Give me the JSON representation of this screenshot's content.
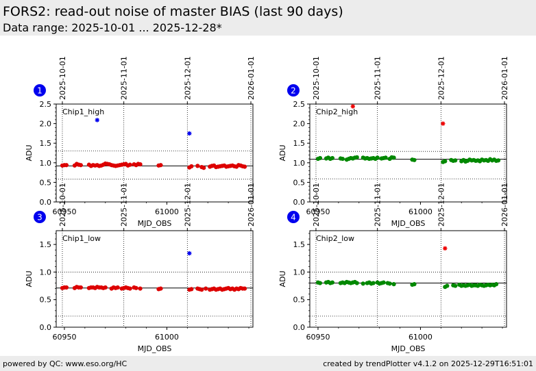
{
  "header": {
    "title": "FORS2: read-out noise of master BIAS (last 90 days)",
    "subtitle": "Data range: 2025-10-01 ... 2025-12-28*"
  },
  "footer": {
    "left": "powered by QC: www.eso.org/HC",
    "right": "created by trendPlotter v4.1.2 on 2025-12-29T16:51:01"
  },
  "colors": {
    "chip1_points": "#dd0000",
    "chip2_points": "#008800",
    "chip1_outlier": "#0000ee",
    "chip2_outlier": "#ee0000",
    "badge": "#0000ee"
  },
  "chart_data": [
    {
      "type": "scatter",
      "badge": "1",
      "label": "Chip1_high",
      "xlabel": "MJD_OBS",
      "ylabel": "ADU",
      "xlim": [
        60946,
        61042
      ],
      "ylim": [
        0,
        2.5
      ],
      "yticks": [
        0.0,
        0.5,
        1.0,
        1.5,
        2.0,
        2.5
      ],
      "xticks": [
        60950,
        61000
      ],
      "date_ticks": [
        {
          "mjd": 60949,
          "label": "2025-10-01"
        },
        {
          "mjd": 60979,
          "label": "2025-11-01"
        },
        {
          "mjd": 61010,
          "label": "2025-12-01"
        },
        {
          "mjd": 61041,
          "label": "2026-01-01"
        }
      ],
      "reference": 0.92,
      "thresholds": [
        0.58,
        1.3
      ],
      "point_color": "#dd0000",
      "x": [
        60949,
        60950,
        60951,
        60955,
        60956,
        60957,
        60958,
        60962,
        60963,
        60964,
        60965,
        60966,
        60967,
        60968,
        60969,
        60970,
        60971,
        60972,
        60973,
        60974,
        60975,
        60976,
        60977,
        60978,
        60979,
        60980,
        60981,
        60982,
        60984,
        60985,
        60986,
        60987,
        60996,
        60997,
        61011,
        61012,
        61015,
        61017,
        61018,
        61021,
        61022,
        61023,
        61024,
        61025,
        61026,
        61027,
        61028,
        61029,
        61030,
        61031,
        61032,
        61033,
        61034,
        61035,
        61036,
        61037,
        61038
      ],
      "y": [
        0.93,
        0.94,
        0.94,
        0.93,
        0.97,
        0.95,
        0.94,
        0.95,
        0.92,
        0.94,
        0.93,
        0.94,
        0.92,
        0.93,
        0.95,
        0.98,
        0.97,
        0.96,
        0.94,
        0.93,
        0.92,
        0.93,
        0.94,
        0.95,
        0.96,
        0.97,
        0.93,
        0.95,
        0.96,
        0.94,
        0.97,
        0.96,
        0.93,
        0.94,
        0.88,
        0.91,
        0.92,
        0.89,
        0.87,
        0.9,
        0.92,
        0.93,
        0.89,
        0.9,
        0.91,
        0.92,
        0.93,
        0.9,
        0.91,
        0.92,
        0.93,
        0.91,
        0.9,
        0.94,
        0.93,
        0.91,
        0.9
      ],
      "outliers": [
        {
          "x": 60966,
          "y": 2.09
        },
        {
          "x": 61011,
          "y": 1.75
        }
      ],
      "outlier_color": "#0000ee"
    },
    {
      "type": "scatter",
      "badge": "2",
      "label": "Chip2_high",
      "xlabel": "MJD_OBS",
      "ylabel": "ADU",
      "xlim": [
        60946,
        61042
      ],
      "ylim": [
        0,
        2.5
      ],
      "yticks": [
        0.0,
        0.5,
        1.0,
        1.5,
        2.0,
        2.5
      ],
      "xticks": [
        60950,
        61000
      ],
      "date_ticks": [
        {
          "mjd": 60949,
          "label": "2025-10-01"
        },
        {
          "mjd": 60979,
          "label": "2025-11-01"
        },
        {
          "mjd": 61010,
          "label": "2025-12-01"
        },
        {
          "mjd": 61041,
          "label": "2026-01-01"
        }
      ],
      "reference": 1.09,
      "thresholds": [
        0.59,
        1.29
      ],
      "point_color": "#008800",
      "x": [
        60950,
        60951,
        60954,
        60955,
        60956,
        60957,
        60961,
        60962,
        60964,
        60965,
        60966,
        60967,
        60968,
        60969,
        60972,
        60973,
        60974,
        60975,
        60976,
        60977,
        60978,
        60979,
        60981,
        60982,
        60983,
        60985,
        60986,
        60987,
        60996,
        60997,
        61011,
        61012,
        61015,
        61016,
        61017,
        61020,
        61021,
        61022,
        61023,
        61024,
        61025,
        61026,
        61027,
        61028,
        61029,
        61030,
        61031,
        61032,
        61033,
        61034,
        61035,
        61036,
        61037,
        61038
      ],
      "y": [
        1.1,
        1.12,
        1.11,
        1.13,
        1.1,
        1.12,
        1.11,
        1.1,
        1.08,
        1.1,
        1.12,
        1.11,
        1.13,
        1.14,
        1.13,
        1.11,
        1.12,
        1.1,
        1.11,
        1.12,
        1.1,
        1.13,
        1.11,
        1.12,
        1.13,
        1.1,
        1.14,
        1.13,
        1.08,
        1.07,
        1.02,
        1.04,
        1.07,
        1.05,
        1.06,
        1.04,
        1.07,
        1.03,
        1.05,
        1.08,
        1.06,
        1.07,
        1.05,
        1.06,
        1.04,
        1.08,
        1.06,
        1.07,
        1.05,
        1.09,
        1.06,
        1.08,
        1.05,
        1.06
      ],
      "outliers": [
        {
          "x": 60967,
          "y": 2.44
        },
        {
          "x": 61011,
          "y": 2.0
        }
      ],
      "outlier_color": "#ee0000"
    },
    {
      "type": "scatter",
      "badge": "3",
      "label": "Chip1_low",
      "xlabel": "MJD_OBS",
      "ylabel": "ADU",
      "xlim": [
        60946,
        61042
      ],
      "ylim": [
        0,
        1.75
      ],
      "yticks": [
        0.0,
        0.5,
        1.0,
        1.5
      ],
      "xticks": [
        60950,
        61000
      ],
      "date_ticks": [
        {
          "mjd": 60949,
          "label": "2025-10-01"
        },
        {
          "mjd": 60979,
          "label": "2025-11-01"
        },
        {
          "mjd": 61010,
          "label": "2025-12-01"
        },
        {
          "mjd": 61041,
          "label": "2026-01-01"
        }
      ],
      "reference": 0.71,
      "thresholds": [
        0.2,
        1.0
      ],
      "point_color": "#dd0000",
      "x": [
        60949,
        60950,
        60951,
        60955,
        60956,
        60957,
        60958,
        60962,
        60963,
        60964,
        60965,
        60966,
        60967,
        60968,
        60969,
        60970,
        60973,
        60974,
        60975,
        60976,
        60978,
        60979,
        60980,
        60981,
        60982,
        60984,
        60985,
        60987,
        60996,
        60997,
        61011,
        61012,
        61015,
        61016,
        61017,
        61019,
        61021,
        61022,
        61023,
        61024,
        61025,
        61026,
        61027,
        61028,
        61029,
        61030,
        61031,
        61032,
        61033,
        61034,
        61035,
        61036,
        61037,
        61038
      ],
      "y": [
        0.71,
        0.72,
        0.72,
        0.71,
        0.73,
        0.72,
        0.72,
        0.71,
        0.72,
        0.72,
        0.71,
        0.73,
        0.72,
        0.72,
        0.71,
        0.72,
        0.7,
        0.72,
        0.71,
        0.72,
        0.7,
        0.71,
        0.72,
        0.71,
        0.7,
        0.72,
        0.71,
        0.7,
        0.69,
        0.7,
        0.68,
        0.69,
        0.7,
        0.69,
        0.68,
        0.7,
        0.68,
        0.69,
        0.7,
        0.68,
        0.69,
        0.7,
        0.68,
        0.69,
        0.7,
        0.71,
        0.69,
        0.7,
        0.68,
        0.7,
        0.69,
        0.71,
        0.7,
        0.7
      ],
      "outliers": [
        {
          "x": 61011,
          "y": 1.34
        }
      ],
      "outlier_color": "#0000ee"
    },
    {
      "type": "scatter",
      "badge": "4",
      "label": "Chip2_low",
      "xlabel": "MJD_OBS",
      "ylabel": "ADU",
      "xlim": [
        60946,
        61042
      ],
      "ylim": [
        0,
        1.75
      ],
      "yticks": [
        0.0,
        0.5,
        1.0,
        1.5
      ],
      "xticks": [
        60950,
        61000
      ],
      "date_ticks": [
        {
          "mjd": 60949,
          "label": "2025-10-01"
        },
        {
          "mjd": 60979,
          "label": "2025-11-01"
        },
        {
          "mjd": 61010,
          "label": "2025-12-01"
        },
        {
          "mjd": 61041,
          "label": "2026-01-01"
        }
      ],
      "reference": 0.8,
      "thresholds": [
        0.2,
        1.0
      ],
      "point_color": "#008800",
      "x": [
        60950,
        60951,
        60954,
        60955,
        60956,
        60957,
        60961,
        60962,
        60963,
        60964,
        60965,
        60966,
        60967,
        60968,
        60969,
        60972,
        60974,
        60975,
        60976,
        60977,
        60979,
        60980,
        60981,
        60982,
        60984,
        60985,
        60987,
        60996,
        60997,
        61012,
        61013,
        61016,
        61017,
        61019,
        61020,
        61021,
        61022,
        61023,
        61024,
        61025,
        61026,
        61027,
        61028,
        61029,
        61030,
        61031,
        61032,
        61033,
        61034,
        61035,
        61036,
        61037
      ],
      "y": [
        0.81,
        0.8,
        0.81,
        0.82,
        0.8,
        0.81,
        0.8,
        0.81,
        0.8,
        0.82,
        0.81,
        0.8,
        0.81,
        0.82,
        0.8,
        0.79,
        0.8,
        0.81,
        0.79,
        0.8,
        0.81,
        0.79,
        0.8,
        0.81,
        0.8,
        0.79,
        0.78,
        0.77,
        0.78,
        0.73,
        0.75,
        0.76,
        0.75,
        0.77,
        0.75,
        0.76,
        0.75,
        0.76,
        0.77,
        0.75,
        0.76,
        0.76,
        0.75,
        0.77,
        0.76,
        0.75,
        0.76,
        0.77,
        0.76,
        0.77,
        0.76,
        0.78
      ],
      "outliers": [
        {
          "x": 61012,
          "y": 1.43
        }
      ],
      "outlier_color": "#ee0000"
    }
  ]
}
